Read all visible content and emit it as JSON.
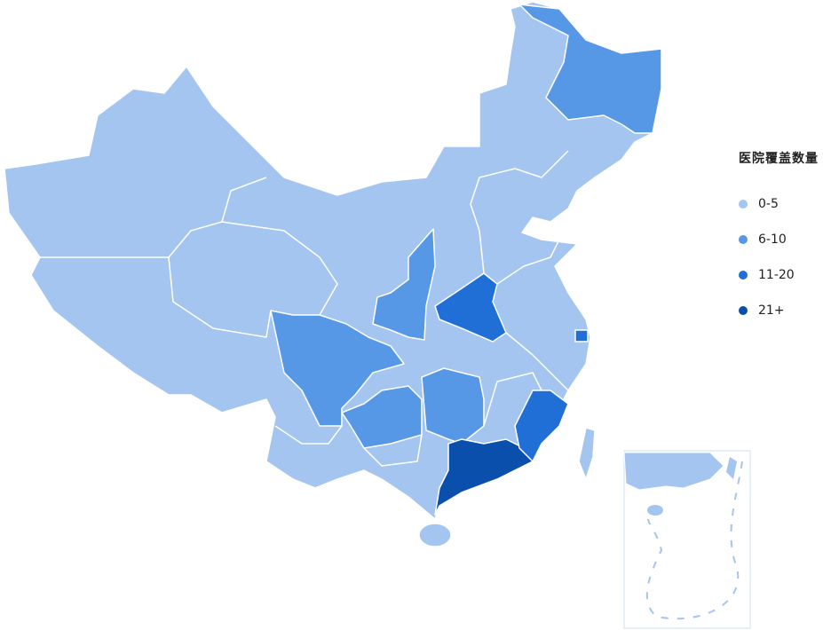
{
  "legend": {
    "title": "医院覆盖数量",
    "items": [
      {
        "label": "0-5",
        "color": "#a3c5f0"
      },
      {
        "label": "6-10",
        "color": "#5697e6"
      },
      {
        "label": "11-20",
        "color": "#1f6fd6"
      },
      {
        "label": "21+",
        "color": "#0a4fab"
      }
    ]
  },
  "regions": {
    "base_level": 0,
    "heilongjiang": 1,
    "shaanxi": 1,
    "sichuan": 1,
    "guizhou": 1,
    "hunan": 1,
    "henan": 2,
    "shanghai": 2,
    "fujian": 2,
    "guangdong": 3
  }
}
